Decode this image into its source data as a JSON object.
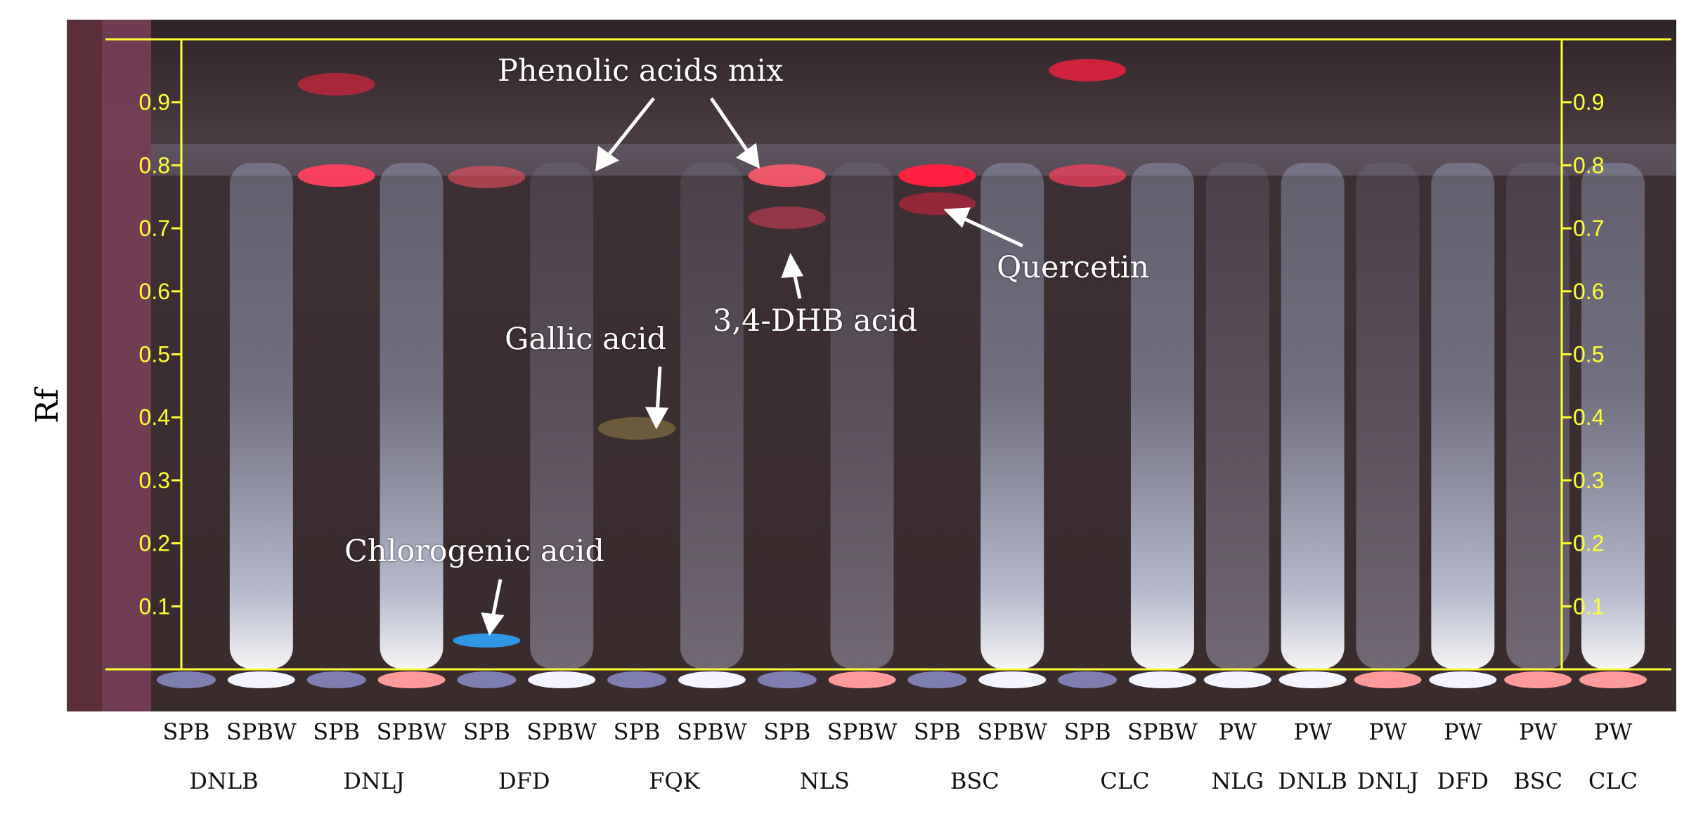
{
  "y_axis_label": "Rf",
  "rf_ticks": [
    "0.9",
    "0.8",
    "0.7",
    "0.6",
    "0.5",
    "0.4",
    "0.3",
    "0.2",
    "0.1"
  ],
  "annotations": {
    "phenolic_mix": "Phenolic acids mix",
    "quercetin": "Quercetin",
    "dhb": "3,4-DHB acid",
    "gallic": "Gallic acid",
    "chlorogenic": "Chlorogenic acid"
  },
  "lane_row1": [
    "SPB",
    "SPBW",
    "SPB",
    "SPBW",
    "SPB",
    "SPBW",
    "SPB",
    "SPBW",
    "SPB",
    "SPBW",
    "SPB",
    "SPBW",
    "SPB",
    "SPBW",
    "PW",
    "PW",
    "PW",
    "PW",
    "PW",
    "PW"
  ],
  "lane_row2": [
    "DNLB",
    "DNLJ",
    "DFD",
    "FQK",
    "NLS",
    "BSC",
    "CLC",
    "NLG",
    "DNLB",
    "DNLJ",
    "DFD",
    "BSC",
    "CLC"
  ],
  "colors": {
    "plate_background": "#3b2a2c",
    "frame_line": "#ffff33",
    "annotation_text": "#ffffff",
    "bluish_lane_glow": "#c8d4f0",
    "red_band": "#ff3050"
  }
}
